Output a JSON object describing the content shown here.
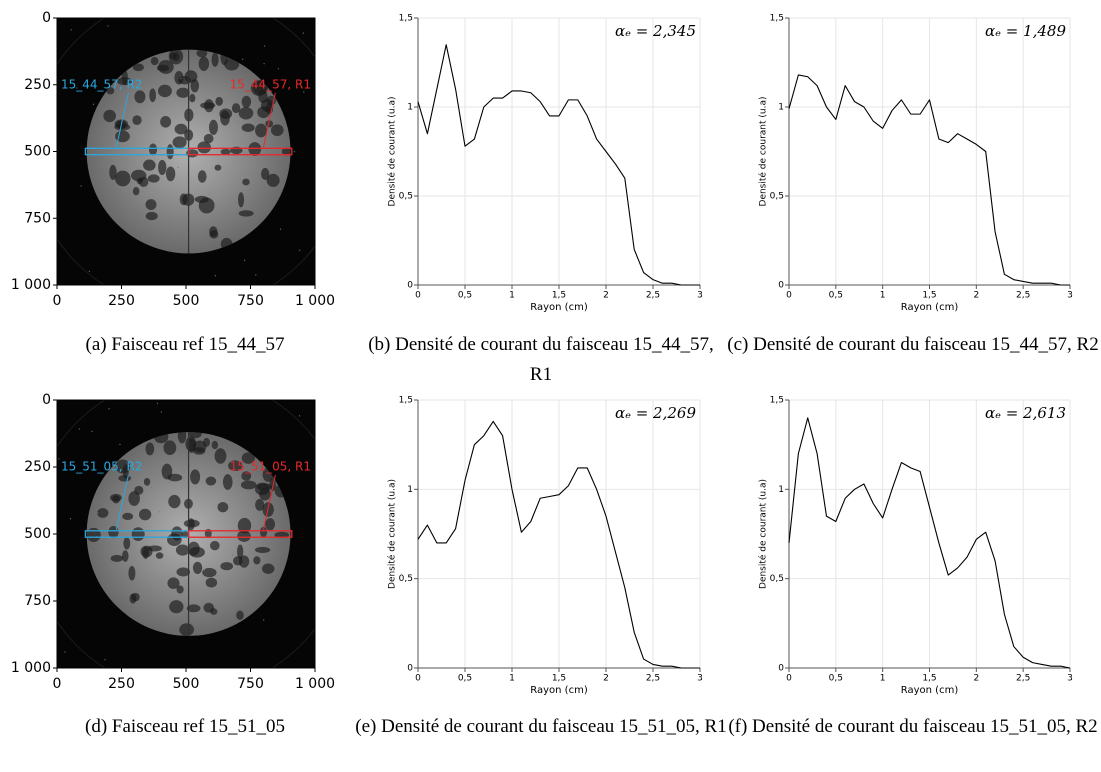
{
  "chart_data": [
    {
      "type": "image",
      "caption": "(a) Faisceau ref 15_44_57",
      "xlim": [
        0,
        1000
      ],
      "ylim": [
        1000,
        0
      ],
      "xticks": [
        0,
        250,
        500,
        750,
        {
          "value": 1000,
          "label": "1 000"
        }
      ],
      "yticks": [
        0,
        250,
        500,
        750,
        {
          "value": 1000,
          "label": "1 000"
        }
      ],
      "regions": [
        {
          "name": "15_44_57, R2",
          "color": "#2aa7e0",
          "x": [
            110,
            510
          ],
          "y": [
            488,
            512
          ]
        },
        {
          "name": "15_44_57, R1",
          "color": "#e8282b",
          "x": [
            510,
            910
          ],
          "y": [
            488,
            512
          ]
        }
      ]
    },
    {
      "type": "line",
      "caption": "(b) Densité de courant du faisceau 15_44_57, R1",
      "annotation": "αₑ = 2,345",
      "xlabel": "Rayon (cm)",
      "ylabel": "Densité de courant (u.a)",
      "color": "#000000",
      "grid": true,
      "xlim": [
        0,
        3
      ],
      "ylim": [
        0,
        1.5
      ],
      "xticks": [
        0,
        {
          "value": 0.5,
          "label": "0,5"
        },
        1,
        {
          "value": 1.5,
          "label": "1,5"
        },
        2,
        {
          "value": 2.5,
          "label": "2,5"
        },
        3
      ],
      "yticks": [
        0,
        {
          "value": 0.5,
          "label": "0,5"
        },
        1,
        {
          "value": 1.5,
          "label": "1,5"
        }
      ],
      "x": [
        0,
        0.1,
        0.2,
        0.3,
        0.4,
        0.5,
        0.6,
        0.7,
        0.8,
        0.9,
        1,
        1.1,
        1.2,
        1.3,
        1.4,
        1.5,
        1.6,
        1.7,
        1.8,
        1.9,
        2,
        2.1,
        2.2,
        2.3,
        2.4,
        2.5,
        2.6,
        2.7,
        2.8,
        2.9,
        3
      ],
      "values": [
        1.03,
        0.85,
        1.1,
        1.35,
        1.1,
        0.78,
        0.82,
        1.0,
        1.05,
        1.05,
        1.09,
        1.09,
        1.08,
        1.03,
        0.95,
        0.95,
        1.04,
        1.04,
        0.95,
        0.82,
        0.75,
        0.68,
        0.6,
        0.2,
        0.07,
        0.03,
        0.01,
        0.01,
        0,
        0,
        0
      ]
    },
    {
      "type": "line",
      "caption": "(c) Densité de courant du faisceau 15_44_57, R2",
      "annotation": "αₑ = 1,489",
      "xlabel": "Rayon (cm)",
      "ylabel": "Densité de courant (u.a)",
      "color": "#000000",
      "grid": true,
      "xlim": [
        0,
        3
      ],
      "ylim": [
        0,
        1.5
      ],
      "xticks": [
        0,
        {
          "value": 0.5,
          "label": "0,5"
        },
        1,
        {
          "value": 1.5,
          "label": "1,5"
        },
        2,
        {
          "value": 2.5,
          "label": "2,5"
        },
        3
      ],
      "yticks": [
        0,
        {
          "value": 0.5,
          "label": "0,5"
        },
        1,
        {
          "value": 1.5,
          "label": "1,5"
        }
      ],
      "x": [
        0,
        0.1,
        0.2,
        0.3,
        0.4,
        0.5,
        0.6,
        0.7,
        0.8,
        0.9,
        1,
        1.1,
        1.2,
        1.3,
        1.4,
        1.5,
        1.6,
        1.7,
        1.8,
        1.9,
        2,
        2.1,
        2.2,
        2.3,
        2.4,
        2.5,
        2.6,
        2.7,
        2.8,
        2.9,
        3
      ],
      "values": [
        0.99,
        1.18,
        1.17,
        1.12,
        1.0,
        0.93,
        1.12,
        1.03,
        1.0,
        0.92,
        0.88,
        0.98,
        1.04,
        0.96,
        0.96,
        1.04,
        0.82,
        0.8,
        0.85,
        0.82,
        0.79,
        0.75,
        0.3,
        0.06,
        0.03,
        0.02,
        0.01,
        0.01,
        0.01,
        0,
        0
      ]
    },
    {
      "type": "image",
      "caption": "(d) Faisceau ref 15_51_05",
      "xlim": [
        0,
        1000
      ],
      "ylim": [
        1000,
        0
      ],
      "xticks": [
        0,
        250,
        500,
        750,
        {
          "value": 1000,
          "label": "1 000"
        }
      ],
      "yticks": [
        0,
        250,
        500,
        750,
        {
          "value": 1000,
          "label": "1 000"
        }
      ],
      "regions": [
        {
          "name": "15_51_05, R2",
          "color": "#2aa7e0",
          "x": [
            110,
            510
          ],
          "y": [
            488,
            512
          ]
        },
        {
          "name": "15_51_05, R1",
          "color": "#e8282b",
          "x": [
            510,
            910
          ],
          "y": [
            488,
            512
          ]
        }
      ]
    },
    {
      "type": "line",
      "caption": "(e) Densité de courant du faisceau 15_51_05, R1",
      "annotation": "αₑ = 2,269",
      "xlabel": "Rayon (cm)",
      "ylabel": "Densité de courant (u.a)",
      "color": "#000000",
      "grid": true,
      "xlim": [
        0,
        3
      ],
      "ylim": [
        0,
        1.5
      ],
      "xticks": [
        0,
        {
          "value": 0.5,
          "label": "0,5"
        },
        1,
        {
          "value": 1.5,
          "label": "1,5"
        },
        2,
        {
          "value": 2.5,
          "label": "2,5"
        },
        3
      ],
      "yticks": [
        0,
        {
          "value": 0.5,
          "label": "0,5"
        },
        1,
        {
          "value": 1.5,
          "label": "1,5"
        }
      ],
      "x": [
        0,
        0.1,
        0.2,
        0.3,
        0.4,
        0.5,
        0.6,
        0.7,
        0.8,
        0.9,
        1,
        1.1,
        1.2,
        1.3,
        1.4,
        1.5,
        1.6,
        1.7,
        1.8,
        1.9,
        2,
        2.1,
        2.2,
        2.3,
        2.4,
        2.5,
        2.6,
        2.7,
        2.8,
        2.9,
        3
      ],
      "values": [
        0.72,
        0.8,
        0.7,
        0.7,
        0.78,
        1.05,
        1.25,
        1.3,
        1.38,
        1.3,
        1.0,
        0.76,
        0.82,
        0.95,
        0.96,
        0.97,
        1.02,
        1.12,
        1.12,
        1.0,
        0.85,
        0.65,
        0.45,
        0.2,
        0.05,
        0.02,
        0.01,
        0.01,
        0,
        0,
        0
      ]
    },
    {
      "type": "line",
      "caption": "(f) Densité de courant du faisceau 15_51_05, R2",
      "annotation": "αₑ = 2,613",
      "xlabel": "Rayon (cm)",
      "ylabel": "Densité de courant (u.a)",
      "color": "#000000",
      "grid": true,
      "xlim": [
        0,
        3
      ],
      "ylim": [
        0,
        1.5
      ],
      "xticks": [
        0,
        {
          "value": 0.5,
          "label": "0,5"
        },
        1,
        {
          "value": 1.5,
          "label": "1,5"
        },
        2,
        {
          "value": 2.5,
          "label": "2,5"
        },
        3
      ],
      "yticks": [
        0,
        {
          "value": 0.5,
          "label": "0,5"
        },
        1,
        {
          "value": 1.5,
          "label": "1,5"
        }
      ],
      "x": [
        0,
        0.1,
        0.2,
        0.3,
        0.4,
        0.5,
        0.6,
        0.7,
        0.8,
        0.9,
        1,
        1.1,
        1.2,
        1.3,
        1.4,
        1.5,
        1.6,
        1.7,
        1.8,
        1.9,
        2,
        2.1,
        2.2,
        2.3,
        2.4,
        2.5,
        2.6,
        2.7,
        2.8,
        2.9,
        3
      ],
      "values": [
        0.7,
        1.2,
        1.4,
        1.2,
        0.85,
        0.82,
        0.95,
        1.0,
        1.03,
        0.92,
        0.84,
        1.0,
        1.15,
        1.12,
        1.1,
        0.9,
        0.7,
        0.52,
        0.56,
        0.62,
        0.72,
        0.76,
        0.6,
        0.3,
        0.12,
        0.06,
        0.03,
        0.02,
        0.01,
        0.01,
        0
      ]
    }
  ]
}
